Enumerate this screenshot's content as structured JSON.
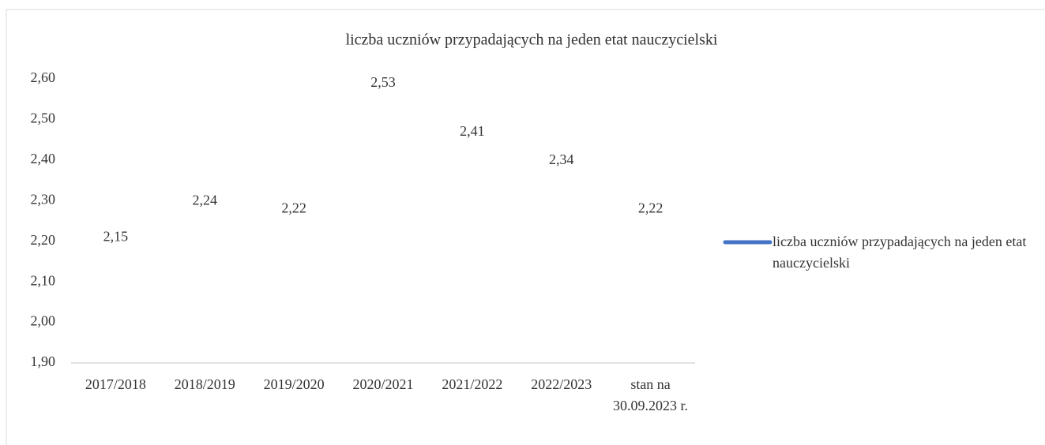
{
  "chart_data": {
    "type": "line",
    "title": "liczba uczniów przypadających  na jeden etat nauczycielski",
    "categories": [
      "2017/2018",
      "2018/2019",
      "2019/2020",
      "2020/2021",
      "2021/2022",
      "2022/2023",
      "stan na 30.09.2023 r."
    ],
    "series": [
      {
        "name": "liczba uczniów przypadających na jeden etat nauczycielski",
        "color": "#4472c4",
        "values": [
          2.15,
          2.24,
          2.22,
          2.53,
          2.41,
          2.34,
          2.22
        ],
        "value_labels": [
          "2,15",
          "2,24",
          "2,22",
          "2,53",
          "2,41",
          "2,34",
          "2,22"
        ]
      }
    ],
    "ylim": [
      1.9,
      2.6
    ],
    "yticks": [
      {
        "value": 1.9,
        "label": "1,90"
      },
      {
        "value": 2.0,
        "label": "2,00"
      },
      {
        "value": 2.1,
        "label": "2,10"
      },
      {
        "value": 2.2,
        "label": "2,20"
      },
      {
        "value": 2.3,
        "label": "2,30"
      },
      {
        "value": 2.4,
        "label": "2,40"
      },
      {
        "value": 2.5,
        "label": "2,50"
      },
      {
        "value": 2.6,
        "label": "2,60"
      }
    ],
    "legend": "right"
  }
}
